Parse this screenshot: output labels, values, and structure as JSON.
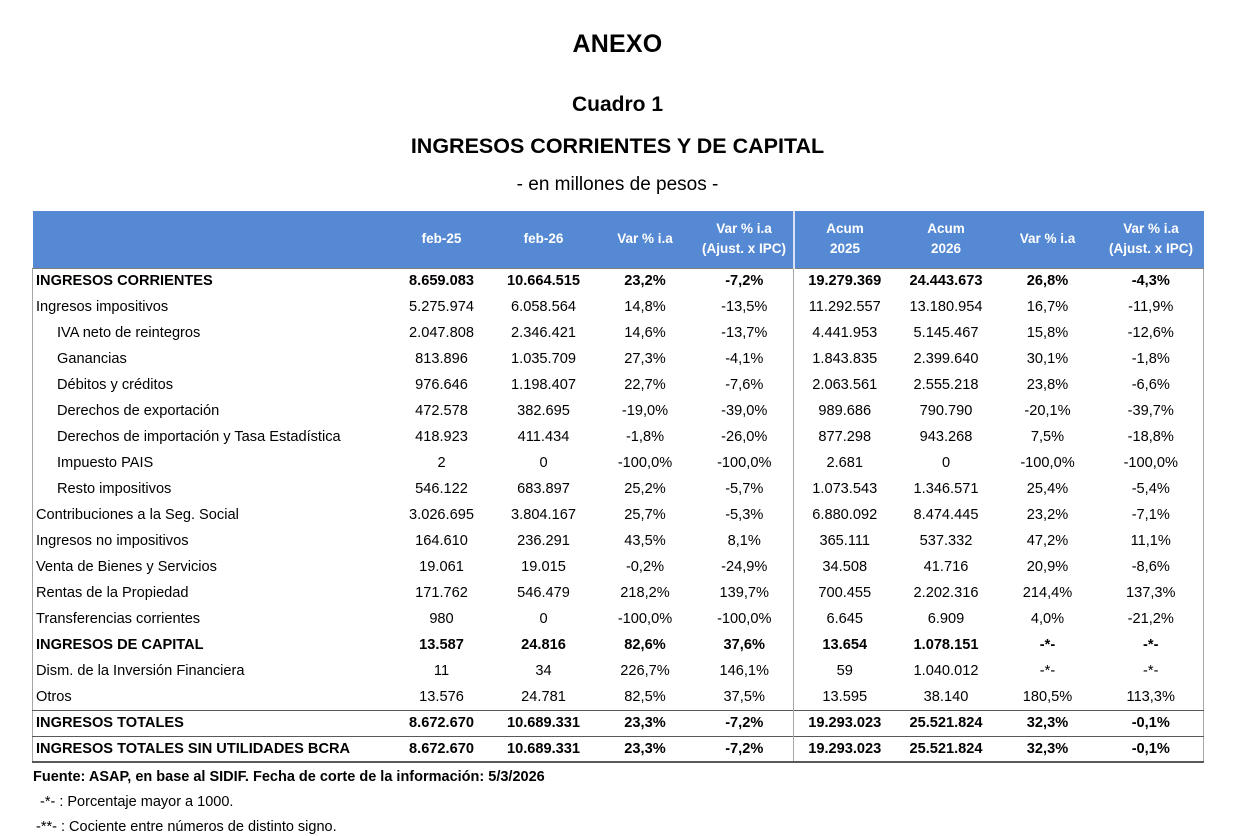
{
  "page": {
    "title": "ANEXO",
    "subtitle": "Cuadro 1",
    "table_title": "INGRESOS CORRIENTES Y DE CAPITAL",
    "units_note": "- en millones de pesos -"
  },
  "colors": {
    "header_bg": "#5689D3",
    "header_text": "#FFFFFF",
    "border_light": "#A6A6A6",
    "border_dark": "#595959"
  },
  "table": {
    "columns": [
      "",
      "feb-25",
      "feb-26",
      "Var % i.a",
      "Var % i.a\n(Ajust. x IPC)",
      "Acum\n2025",
      "Acum\n2026",
      "Var % i.a",
      "Var % i.a\n(Ajust. x IPC)"
    ],
    "rows": [
      {
        "label": "INGRESOS CORRIENTES",
        "indent": 0,
        "style": "section",
        "values": [
          "8.659.083",
          "10.664.515",
          "23,2%",
          "-7,2%",
          "19.279.369",
          "24.443.673",
          "26,8%",
          "-4,3%"
        ]
      },
      {
        "label": "Ingresos impositivos",
        "indent": 0,
        "style": "normal",
        "values": [
          "5.275.974",
          "6.058.564",
          "14,8%",
          "-13,5%",
          "11.292.557",
          "13.180.954",
          "16,7%",
          "-11,9%"
        ]
      },
      {
        "label": "IVA neto de reintegros",
        "indent": 1,
        "style": "normal",
        "values": [
          "2.047.808",
          "2.346.421",
          "14,6%",
          "-13,7%",
          "4.441.953",
          "5.145.467",
          "15,8%",
          "-12,6%"
        ]
      },
      {
        "label": "Ganancias",
        "indent": 1,
        "style": "normal",
        "values": [
          "813.896",
          "1.035.709",
          "27,3%",
          "-4,1%",
          "1.843.835",
          "2.399.640",
          "30,1%",
          "-1,8%"
        ]
      },
      {
        "label": "Débitos y créditos",
        "indent": 1,
        "style": "normal",
        "values": [
          "976.646",
          "1.198.407",
          "22,7%",
          "-7,6%",
          "2.063.561",
          "2.555.218",
          "23,8%",
          "-6,6%"
        ]
      },
      {
        "label": "Derechos de exportación",
        "indent": 1,
        "style": "normal",
        "values": [
          "472.578",
          "382.695",
          "-19,0%",
          "-39,0%",
          "989.686",
          "790.790",
          "-20,1%",
          "-39,7%"
        ]
      },
      {
        "label": "Derechos de importación y Tasa Estadística",
        "indent": 1,
        "style": "normal",
        "values": [
          "418.923",
          "411.434",
          "-1,8%",
          "-26,0%",
          "877.298",
          "943.268",
          "7,5%",
          "-18,8%"
        ]
      },
      {
        "label": "Impuesto PAIS",
        "indent": 1,
        "style": "normal",
        "values": [
          "2",
          "0",
          "-100,0%",
          "-100,0%",
          "2.681",
          "0",
          "-100,0%",
          "-100,0%"
        ]
      },
      {
        "label": "Resto impositivos",
        "indent": 1,
        "style": "normal",
        "values": [
          "546.122",
          "683.897",
          "25,2%",
          "-5,7%",
          "1.073.543",
          "1.346.571",
          "25,4%",
          "-5,4%"
        ]
      },
      {
        "label": "Contribuciones a la Seg. Social",
        "indent": 0,
        "style": "normal",
        "values": [
          "3.026.695",
          "3.804.167",
          "25,7%",
          "-5,3%",
          "6.880.092",
          "8.474.445",
          "23,2%",
          "-7,1%"
        ]
      },
      {
        "label": "Ingresos no impositivos",
        "indent": 0,
        "style": "normal",
        "values": [
          "164.610",
          "236.291",
          "43,5%",
          "8,1%",
          "365.111",
          "537.332",
          "47,2%",
          "11,1%"
        ]
      },
      {
        "label": "Venta de Bienes y Servicios",
        "indent": 0,
        "style": "normal",
        "values": [
          "19.061",
          "19.015",
          "-0,2%",
          "-24,9%",
          "34.508",
          "41.716",
          "20,9%",
          "-8,6%"
        ]
      },
      {
        "label": "Rentas de la Propiedad",
        "indent": 0,
        "style": "normal",
        "values": [
          "171.762",
          "546.479",
          "218,2%",
          "139,7%",
          "700.455",
          "2.202.316",
          "214,4%",
          "137,3%"
        ]
      },
      {
        "label": "Transferencias corrientes",
        "indent": 0,
        "style": "normal",
        "values": [
          "980",
          "0",
          "-100,0%",
          "-100,0%",
          "6.645",
          "6.909",
          "4,0%",
          "-21,2%"
        ]
      },
      {
        "label": "INGRESOS DE CAPITAL",
        "indent": 0,
        "style": "section",
        "values": [
          "13.587",
          "24.816",
          "82,6%",
          "37,6%",
          "13.654",
          "1.078.151",
          "-*-",
          "-*-"
        ]
      },
      {
        "label": "Dism. de la Inversión Financiera",
        "indent": 0,
        "style": "normal",
        "values": [
          "11",
          "34",
          "226,7%",
          "146,1%",
          "59",
          "1.040.012",
          "-*-",
          "-*-"
        ]
      },
      {
        "label": "Otros",
        "indent": 0,
        "style": "normal",
        "values": [
          "13.576",
          "24.781",
          "82,5%",
          "37,5%",
          "13.595",
          "38.140",
          "180,5%",
          "113,3%"
        ]
      },
      {
        "label": "INGRESOS TOTALES",
        "indent": 0,
        "style": "total",
        "values": [
          "8.672.670",
          "10.689.331",
          "23,3%",
          "-7,2%",
          "19.293.023",
          "25.521.824",
          "32,3%",
          "-0,1%"
        ]
      },
      {
        "label": "INGRESOS TOTALES SIN UTILIDADES BCRA",
        "indent": 0,
        "style": "total",
        "values": [
          "8.672.670",
          "10.689.331",
          "23,3%",
          "-7,2%",
          "19.293.023",
          "25.521.824",
          "32,3%",
          "-0,1%"
        ]
      }
    ]
  },
  "footer": {
    "source": "Fuente: ASAP, en base al SIDIF. Fecha de corte de la información: 5/3/2026",
    "footnote_1": "-*-  : Porcentaje mayor a 1000.",
    "footnote_2": "-**- : Cociente entre números de distinto signo."
  }
}
